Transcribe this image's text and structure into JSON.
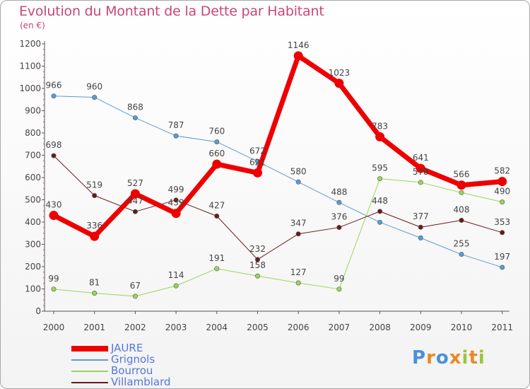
{
  "header": {
    "title": "Evolution du Montant de la Dette par Habitant",
    "subtitle": "(en €)"
  },
  "logo": {
    "text": "Proxiti",
    "colors": [
      "#4a90d9",
      "#e9892b",
      "#4a90d9",
      "#e9892b",
      "#9bc53d",
      "#e9892b",
      "#9bc53d"
    ]
  },
  "chart_data": {
    "type": "line",
    "x": [
      "2000",
      "2001",
      "2002",
      "2003",
      "2004",
      "2005",
      "2006",
      "2007",
      "2008",
      "2009",
      "2010",
      "2011"
    ],
    "ylim": [
      0,
      1200
    ],
    "yticks": [
      0,
      100,
      200,
      300,
      400,
      500,
      600,
      700,
      800,
      900,
      1000,
      1100,
      1200
    ],
    "grid": false,
    "legend_position": "bottom-left",
    "series": [
      {
        "name": "Grignols",
        "color": "#5b9bd5",
        "width": 1,
        "values": [
          966,
          960,
          868,
          787,
          760,
          672,
          580,
          488,
          399,
          329,
          255,
          197
        ]
      },
      {
        "name": "Bourrou",
        "color": "#9ad65a",
        "width": 1,
        "values": [
          99,
          81,
          67,
          114,
          191,
          158,
          127,
          99,
          595,
          578,
          532,
          490
        ]
      },
      {
        "name": "Villamblard",
        "color": "#6b1a1a",
        "width": 1,
        "values": [
          698,
          519,
          447,
          499,
          427,
          232,
          347,
          376,
          448,
          377,
          408,
          353
        ]
      },
      {
        "name": "JAURE",
        "color": "#ee0000",
        "width": 7,
        "values": [
          430,
          336,
          527,
          439,
          660,
          621,
          1146,
          1023,
          783,
          641,
          566,
          582
        ]
      }
    ],
    "labels": [
      {
        "x": "2000",
        "text": "966",
        "y": 966
      },
      {
        "x": "2001",
        "text": "960",
        "y": 960
      },
      {
        "x": "2002",
        "text": "868",
        "y": 868
      },
      {
        "x": "2003",
        "text": "787",
        "y": 787
      },
      {
        "x": "2004",
        "text": "760",
        "y": 760
      },
      {
        "x": "2005",
        "text": "672",
        "y": 672
      },
      {
        "x": "2006",
        "text": "580",
        "y": 580
      },
      {
        "x": "2007",
        "text": "488",
        "y": 488
      },
      {
        "x": "2010",
        "text": "255",
        "y": 255
      },
      {
        "x": "2011",
        "text": "197",
        "y": 197
      },
      {
        "x": "2000",
        "text": "99",
        "y": 99
      },
      {
        "x": "2001",
        "text": "81",
        "y": 81
      },
      {
        "x": "2002",
        "text": "67",
        "y": 67
      },
      {
        "x": "2003",
        "text": "114",
        "y": 114
      },
      {
        "x": "2004",
        "text": "191",
        "y": 191
      },
      {
        "x": "2005",
        "text": "158",
        "y": 158
      },
      {
        "x": "2006",
        "text": "127",
        "y": 127
      },
      {
        "x": "2007",
        "text": "99",
        "y": 99
      },
      {
        "x": "2008",
        "text": "595",
        "y": 595
      },
      {
        "x": "2009",
        "text": "578",
        "y": 578
      },
      {
        "x": "2011",
        "text": "490",
        "y": 490
      },
      {
        "x": "2000",
        "text": "698",
        "y": 698
      },
      {
        "x": "2001",
        "text": "519",
        "y": 519
      },
      {
        "x": "2002",
        "text": "447",
        "y": 447
      },
      {
        "x": "2003",
        "text": "499",
        "y": 499
      },
      {
        "x": "2004",
        "text": "427",
        "y": 427
      },
      {
        "x": "2005",
        "text": "232",
        "y": 232
      },
      {
        "x": "2006",
        "text": "347",
        "y": 347
      },
      {
        "x": "2007",
        "text": "376",
        "y": 376
      },
      {
        "x": "2008",
        "text": "448",
        "y": 448
      },
      {
        "x": "2009",
        "text": "377",
        "y": 377
      },
      {
        "x": "2010",
        "text": "408",
        "y": 408
      },
      {
        "x": "2011",
        "text": "353",
        "y": 353
      },
      {
        "x": "2000",
        "text": "430",
        "y": 430
      },
      {
        "x": "2001",
        "text": "336",
        "y": 336
      },
      {
        "x": "2002",
        "text": "527",
        "y": 527
      },
      {
        "x": "2003",
        "text": "439",
        "y": 439
      },
      {
        "x": "2004",
        "text": "660",
        "y": 660
      },
      {
        "x": "2005",
        "text": "621",
        "y": 621
      },
      {
        "x": "2006",
        "text": "1146",
        "y": 1146
      },
      {
        "x": "2007",
        "text": "1023",
        "y": 1023
      },
      {
        "x": "2008",
        "text": "783",
        "y": 783
      },
      {
        "x": "2009",
        "text": "641",
        "y": 641
      },
      {
        "x": "2010",
        "text": "566",
        "y": 566
      },
      {
        "x": "2011",
        "text": "582",
        "y": 582
      }
    ]
  }
}
